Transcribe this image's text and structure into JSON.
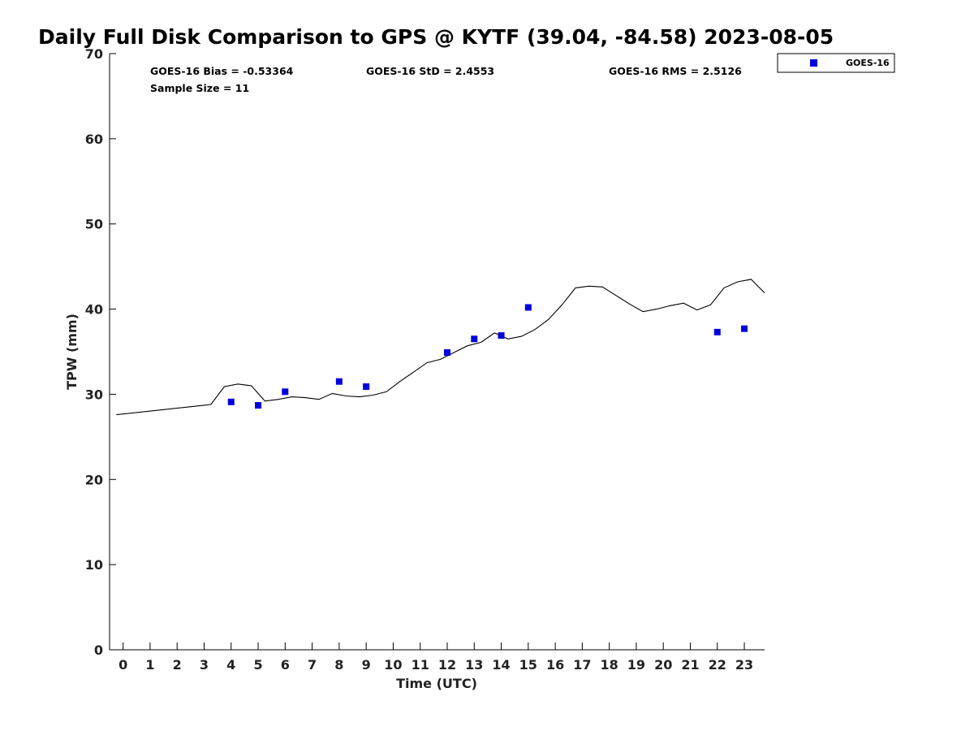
{
  "chart_data": {
    "type": "scatter",
    "title": "Daily Full Disk Comparison to GPS @ KYTF (39.04, -84.58) 2023-08-05",
    "xlabel": "Time (UTC)",
    "ylabel": "TPW (mm)",
    "xlim": [
      -0.5,
      23.75
    ],
    "ylim": [
      0,
      70
    ],
    "xticks": [
      0,
      1,
      2,
      3,
      4,
      5,
      6,
      7,
      8,
      9,
      10,
      11,
      12,
      13,
      14,
      15,
      16,
      17,
      18,
      19,
      20,
      21,
      22,
      23
    ],
    "yticks": [
      0,
      10,
      20,
      30,
      40,
      50,
      60,
      70
    ],
    "grid": false,
    "legend_position": "top-right-outside",
    "stats": {
      "bias": "GOES-16 Bias = -0.53364",
      "std": "GOES-16 StD = 2.4553",
      "rms": "GOES-16 RMS = 2.5126",
      "sample_size": "Sample Size = 11"
    },
    "series": [
      {
        "name": "GOES-16",
        "kind": "scatter",
        "color": "#0000dd",
        "marker": "square",
        "x": [
          4,
          5,
          6,
          8,
          9,
          12,
          13,
          14,
          15,
          22,
          23
        ],
        "y": [
          29.1,
          28.7,
          30.3,
          31.5,
          30.9,
          34.9,
          36.5,
          36.9,
          40.2,
          37.3,
          37.7
        ]
      },
      {
        "kind": "line",
        "color": "#000000",
        "x": [
          -0.25,
          3.25,
          3.75,
          4.25,
          4.75,
          5.25,
          5.75,
          6.25,
          6.75,
          7.25,
          7.75,
          8.25,
          8.75,
          9.25,
          9.75,
          10.25,
          10.75,
          11.25,
          11.75,
          12.25,
          12.75,
          13.25,
          13.75,
          14.25,
          14.75,
          15.25,
          15.75,
          16.25,
          16.75,
          17.25,
          17.75,
          18.25,
          18.75,
          19.25,
          19.75,
          20.25,
          20.75,
          21.25,
          21.75,
          22.25,
          22.75,
          23.25,
          23.75
        ],
        "y": [
          27.6,
          28.8,
          30.9,
          31.2,
          31.0,
          29.2,
          29.4,
          29.7,
          29.6,
          29.4,
          30.1,
          29.8,
          29.7,
          29.9,
          30.3,
          31.5,
          32.6,
          33.7,
          34.1,
          34.9,
          35.7,
          36.1,
          37.2,
          36.5,
          36.8,
          37.6,
          38.8,
          40.5,
          42.5,
          42.7,
          42.6,
          41.6,
          40.6,
          39.7,
          40.0,
          40.4,
          40.7,
          39.9,
          40.5,
          42.5,
          43.2,
          43.5,
          41.9
        ]
      }
    ]
  }
}
